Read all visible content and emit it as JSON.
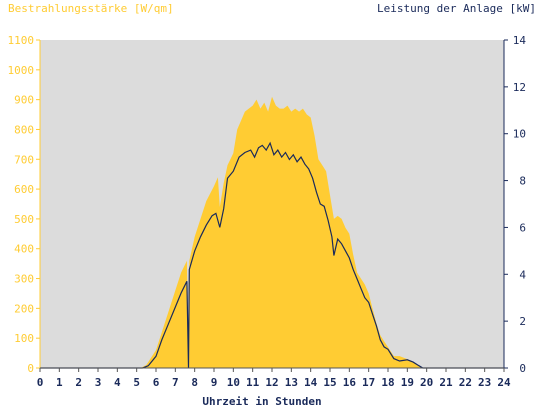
{
  "chart_data": {
    "type": "area",
    "left_axis_title": "Bestrahlungsstärke [W/qm]",
    "right_axis_title": "Leistung der Anlage [kW]",
    "xlabel": "Uhrzeit in Stunden",
    "x_ticks": [
      "0",
      "1",
      "2",
      "3",
      "4",
      "5",
      "6",
      "7",
      "8",
      "9",
      "10",
      "11",
      "12",
      "13",
      "14",
      "15",
      "16",
      "17",
      "18",
      "19",
      "20",
      "21",
      "22",
      "23",
      "24"
    ],
    "xlim": [
      0,
      24
    ],
    "y_left_ticks": [
      "0",
      "100",
      "200",
      "300",
      "400",
      "500",
      "600",
      "700",
      "800",
      "900",
      "1000",
      "1100"
    ],
    "ylim_left": [
      0,
      1100
    ],
    "y_right_ticks": [
      "0",
      "2",
      "4",
      "6",
      "8",
      "10",
      "12",
      "14"
    ],
    "ylim_right": [
      0,
      14
    ],
    "grid": false,
    "colors": {
      "irradiance_fill": "#ffcc33",
      "power_line": "#1a2a5a",
      "left_axis_text": "#ffcc33",
      "right_axis_text": "#1a2a5a",
      "plot_background": "#dcdcdc"
    },
    "series": [
      {
        "name": "Bestrahlungsstärke [W/qm]",
        "axis": "left",
        "style": "area",
        "points": [
          [
            0,
            0
          ],
          [
            5.2,
            0
          ],
          [
            5.5,
            10
          ],
          [
            6.0,
            60
          ],
          [
            6.5,
            160
          ],
          [
            7.0,
            260
          ],
          [
            7.3,
            320
          ],
          [
            7.6,
            360
          ],
          [
            7.68,
            0
          ],
          [
            7.72,
            360
          ],
          [
            8.0,
            440
          ],
          [
            8.3,
            500
          ],
          [
            8.6,
            560
          ],
          [
            9.0,
            610
          ],
          [
            9.2,
            640
          ],
          [
            9.3,
            540
          ],
          [
            9.5,
            620
          ],
          [
            9.7,
            680
          ],
          [
            10.0,
            720
          ],
          [
            10.2,
            800
          ],
          [
            10.4,
            830
          ],
          [
            10.6,
            860
          ],
          [
            10.8,
            870
          ],
          [
            11.0,
            880
          ],
          [
            11.2,
            900
          ],
          [
            11.4,
            870
          ],
          [
            11.6,
            890
          ],
          [
            11.8,
            860
          ],
          [
            12.0,
            910
          ],
          [
            12.2,
            880
          ],
          [
            12.4,
            870
          ],
          [
            12.6,
            870
          ],
          [
            12.8,
            880
          ],
          [
            13.0,
            860
          ],
          [
            13.2,
            870
          ],
          [
            13.4,
            860
          ],
          [
            13.6,
            870
          ],
          [
            13.8,
            850
          ],
          [
            14.0,
            840
          ],
          [
            14.2,
            780
          ],
          [
            14.4,
            700
          ],
          [
            14.6,
            680
          ],
          [
            14.8,
            660
          ],
          [
            15.0,
            580
          ],
          [
            15.2,
            500
          ],
          [
            15.4,
            510
          ],
          [
            15.6,
            500
          ],
          [
            15.8,
            470
          ],
          [
            16.0,
            450
          ],
          [
            16.2,
            380
          ],
          [
            16.4,
            320
          ],
          [
            16.6,
            300
          ],
          [
            16.8,
            280
          ],
          [
            17.0,
            250
          ],
          [
            17.2,
            200
          ],
          [
            17.4,
            150
          ],
          [
            17.6,
            110
          ],
          [
            17.8,
            90
          ],
          [
            18.0,
            70
          ],
          [
            18.3,
            40
          ],
          [
            18.6,
            40
          ],
          [
            19.0,
            30
          ],
          [
            19.3,
            20
          ],
          [
            19.6,
            5
          ],
          [
            19.8,
            0
          ],
          [
            24,
            0
          ]
        ]
      },
      {
        "name": "Leistung der Anlage [kW]",
        "axis": "right",
        "style": "line",
        "points": [
          [
            0,
            0
          ],
          [
            5.3,
            0
          ],
          [
            5.6,
            0.1
          ],
          [
            6.0,
            0.5
          ],
          [
            6.3,
            1.2
          ],
          [
            6.6,
            1.8
          ],
          [
            7.0,
            2.6
          ],
          [
            7.3,
            3.2
          ],
          [
            7.6,
            3.7
          ],
          [
            7.68,
            0
          ],
          [
            7.72,
            4.2
          ],
          [
            8.0,
            5.0
          ],
          [
            8.3,
            5.6
          ],
          [
            8.6,
            6.1
          ],
          [
            8.9,
            6.5
          ],
          [
            9.1,
            6.6
          ],
          [
            9.3,
            6.0
          ],
          [
            9.5,
            6.8
          ],
          [
            9.7,
            8.1
          ],
          [
            10.0,
            8.4
          ],
          [
            10.3,
            9.0
          ],
          [
            10.6,
            9.2
          ],
          [
            10.9,
            9.3
          ],
          [
            11.1,
            9.0
          ],
          [
            11.3,
            9.4
          ],
          [
            11.5,
            9.5
          ],
          [
            11.7,
            9.3
          ],
          [
            11.9,
            9.6
          ],
          [
            12.1,
            9.1
          ],
          [
            12.3,
            9.3
          ],
          [
            12.5,
            9.0
          ],
          [
            12.7,
            9.2
          ],
          [
            12.9,
            8.9
          ],
          [
            13.1,
            9.1
          ],
          [
            13.3,
            8.8
          ],
          [
            13.5,
            9.0
          ],
          [
            13.7,
            8.7
          ],
          [
            13.9,
            8.5
          ],
          [
            14.1,
            8.1
          ],
          [
            14.3,
            7.5
          ],
          [
            14.5,
            7.0
          ],
          [
            14.7,
            6.9
          ],
          [
            14.9,
            6.3
          ],
          [
            15.1,
            5.6
          ],
          [
            15.2,
            4.8
          ],
          [
            15.4,
            5.5
          ],
          [
            15.6,
            5.3
          ],
          [
            15.8,
            5.0
          ],
          [
            16.0,
            4.7
          ],
          [
            16.2,
            4.2
          ],
          [
            16.4,
            3.8
          ],
          [
            16.6,
            3.4
          ],
          [
            16.8,
            3.0
          ],
          [
            17.0,
            2.8
          ],
          [
            17.2,
            2.3
          ],
          [
            17.4,
            1.8
          ],
          [
            17.6,
            1.2
          ],
          [
            17.8,
            0.9
          ],
          [
            18.0,
            0.8
          ],
          [
            18.3,
            0.4
          ],
          [
            18.6,
            0.3
          ],
          [
            19.0,
            0.35
          ],
          [
            19.3,
            0.25
          ],
          [
            19.6,
            0.1
          ],
          [
            19.8,
            0
          ],
          [
            24,
            0
          ]
        ]
      }
    ]
  }
}
